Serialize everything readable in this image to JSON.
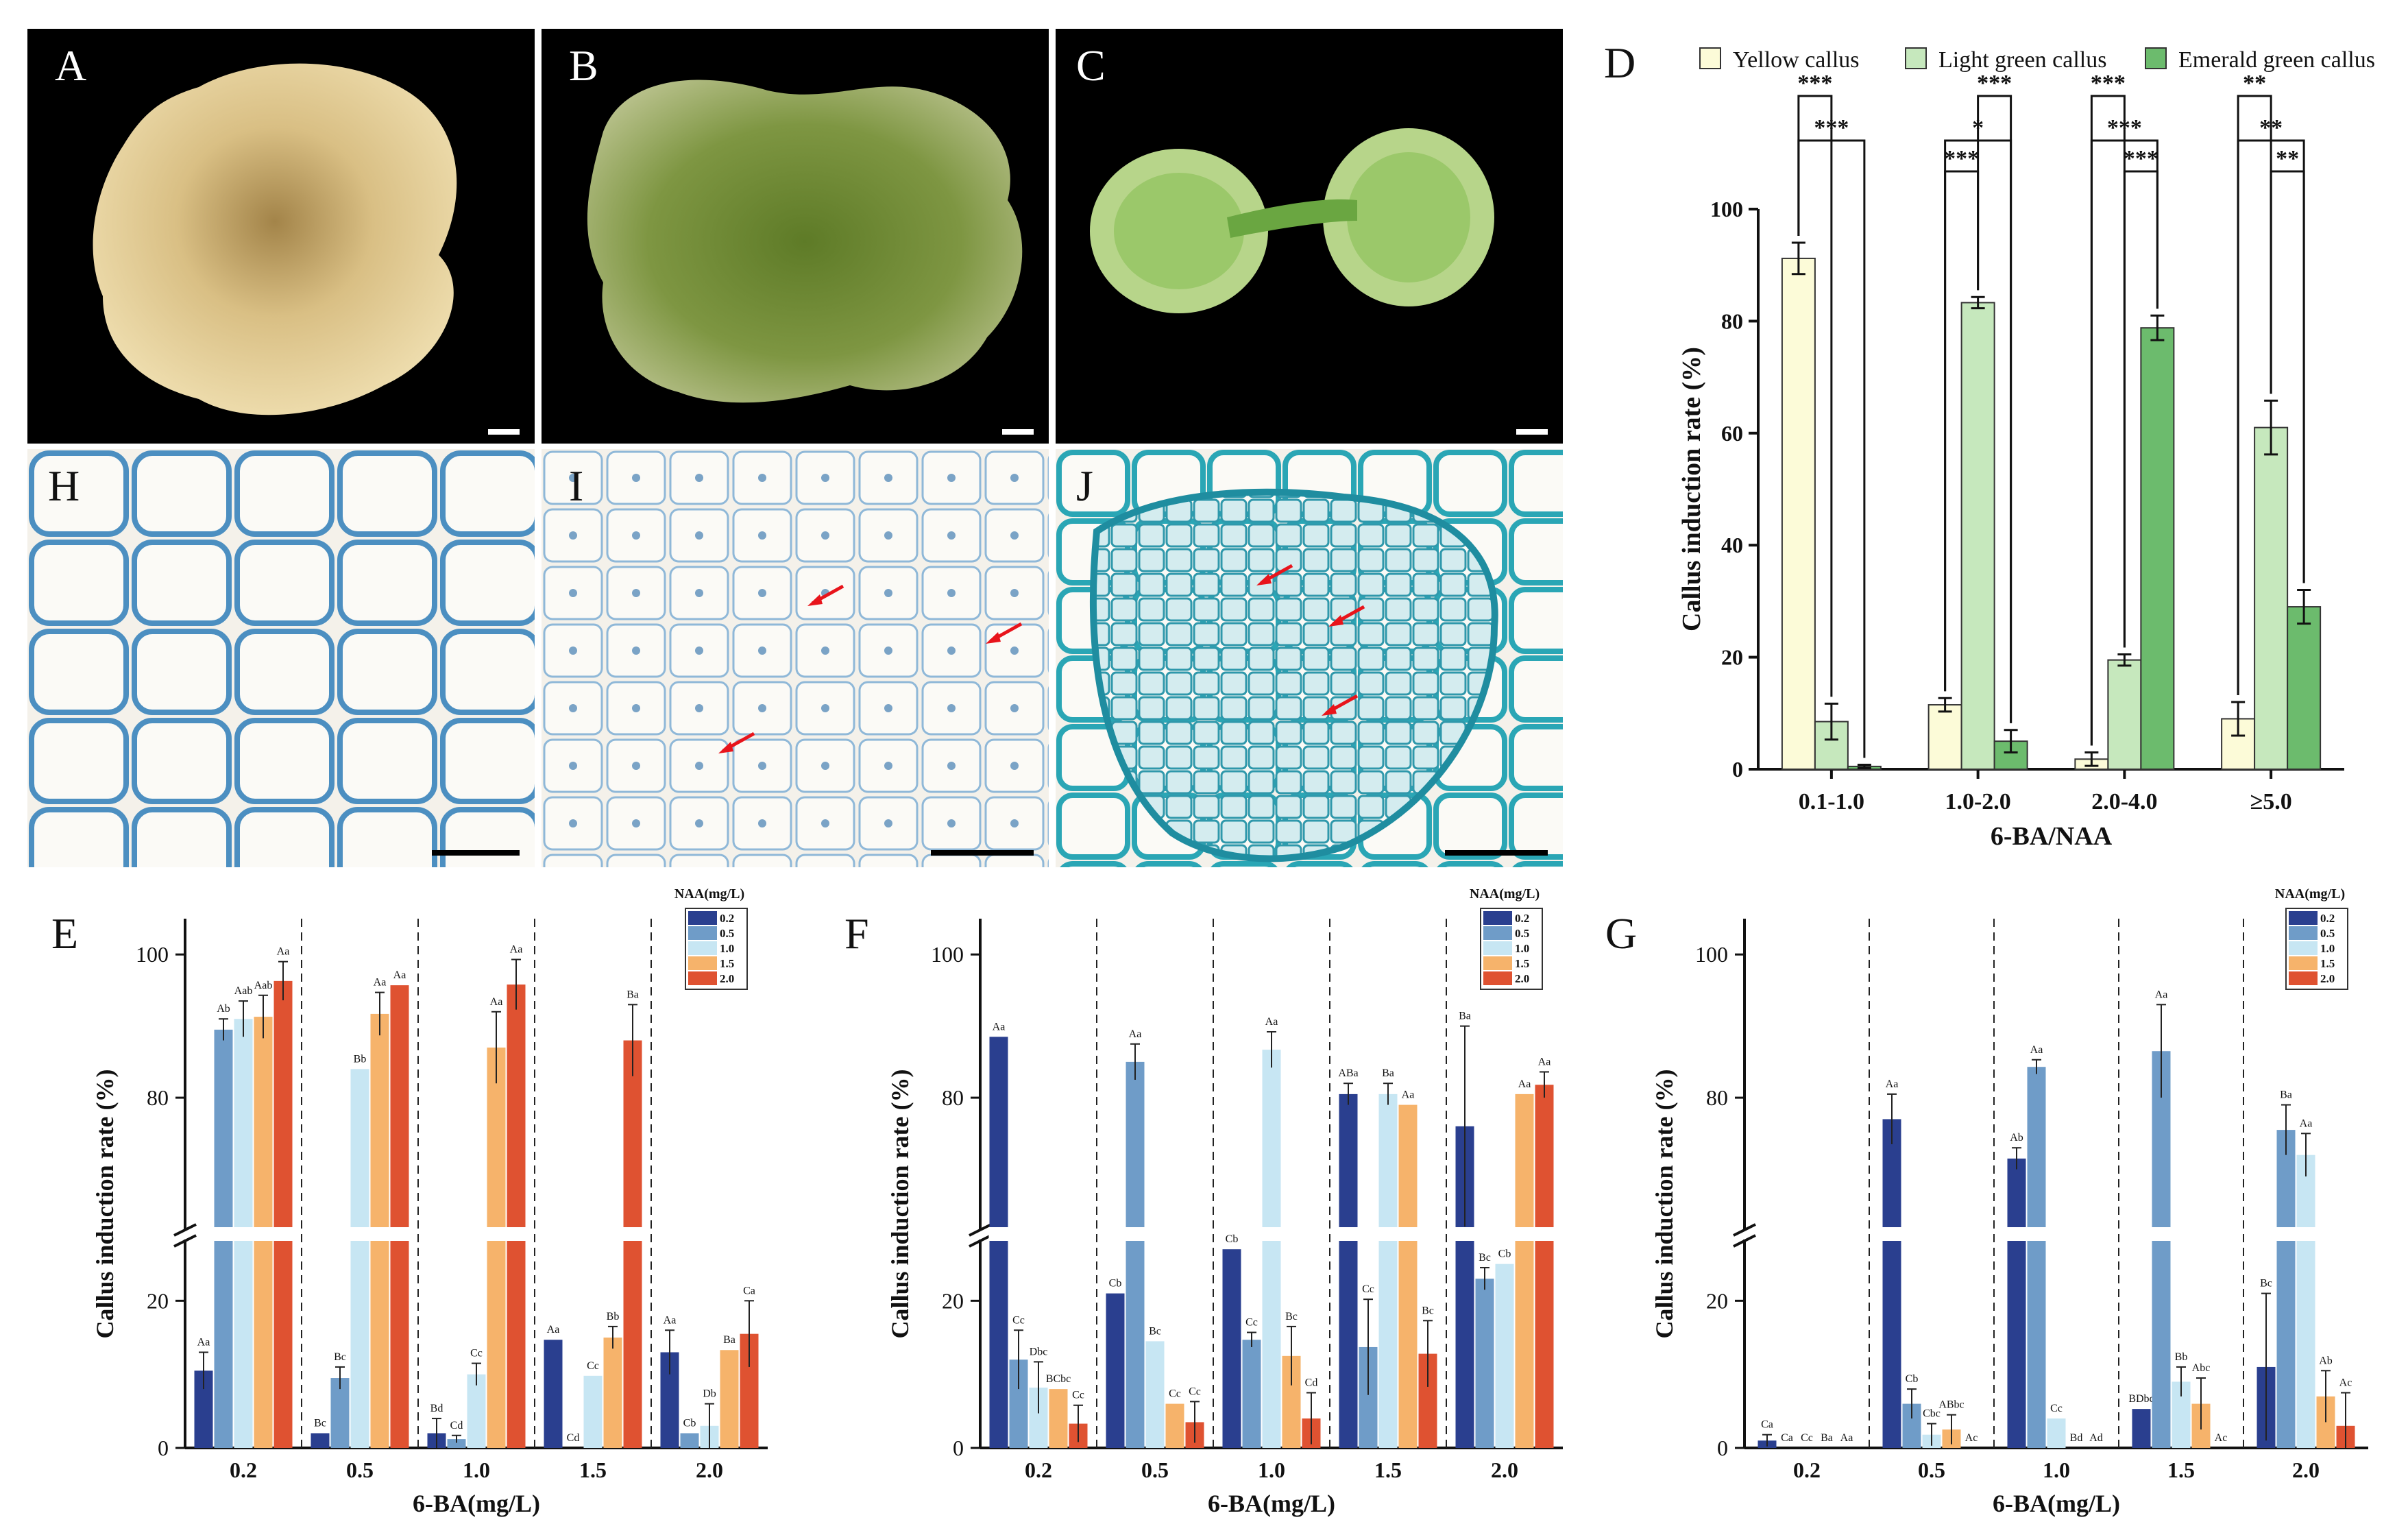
{
  "panels": {
    "A": "A",
    "B": "B",
    "C": "C",
    "D": "D",
    "E": "E",
    "F": "F",
    "G": "G",
    "H": "H",
    "I": "I",
    "J": "J"
  },
  "colors": {
    "photo_bg": "#000000",
    "histo_bg": "#f4f1ea",
    "arrow": "#e8141b",
    "D_yellow": "#fcfbd8",
    "D_light": "#c6e8bd",
    "D_emerald": "#6cbb6d",
    "NAA_0.2": "#2a3f8f",
    "NAA_0.5": "#6f9cc8",
    "NAA_1.0": "#c7e6f3",
    "NAA_1.5": "#f6b36b",
    "NAA_2.0": "#df5231"
  },
  "chart_data": [
    {
      "panel": "D",
      "type": "bar",
      "categories": [
        "0.1-1.0",
        "1.0-2.0",
        "2.0-4.0",
        "≥5.0"
      ],
      "xlabel": "6-BA/NAA",
      "ylabel": "Callus induction rate (%)",
      "ylim": [
        0,
        100
      ],
      "yticks": [
        "0",
        "20",
        "40",
        "60",
        "80",
        "100"
      ],
      "legend_position": "top",
      "series": [
        {
          "name": "Yellow callus",
          "values": [
            91.2,
            11.5,
            1.8,
            9.0
          ],
          "errors": [
            2.8,
            1.2,
            1.2,
            3.0
          ]
        },
        {
          "name": "Light green callus",
          "values": [
            8.5,
            83.3,
            19.5,
            61.0
          ],
          "errors": [
            3.2,
            1.0,
            1.0,
            4.8
          ]
        },
        {
          "name": "Emerald green callus",
          "values": [
            0.5,
            5.0,
            78.8,
            29.0
          ],
          "errors": [
            0.3,
            2.0,
            2.2,
            3.0
          ]
        }
      ],
      "significance": [
        {
          "group": "0.1-1.0",
          "pairs": [
            [
              "Yellow callus",
              "Emerald green callus",
              "***"
            ],
            [
              "Yellow callus",
              "Light green callus",
              "***"
            ]
          ]
        },
        {
          "group": "1.0-2.0",
          "pairs": [
            [
              "Yellow callus",
              "Emerald green callus",
              "*"
            ],
            [
              "Light green callus",
              "Emerald green callus",
              "***"
            ],
            [
              "Yellow callus",
              "Light green callus",
              "***"
            ]
          ]
        },
        {
          "group": "2.0-4.0",
          "pairs": [
            [
              "Yellow callus",
              "Emerald green callus",
              "***"
            ],
            [
              "Yellow callus",
              "Light green callus",
              "***"
            ],
            [
              "Light green callus",
              "Emerald green callus",
              "***"
            ]
          ]
        },
        {
          "group": "≥5.0",
          "pairs": [
            [
              "Yellow callus",
              "Emerald green callus",
              "**"
            ],
            [
              "Yellow callus",
              "Light green callus",
              "**"
            ],
            [
              "Light green callus",
              "Emerald green callus",
              "**"
            ]
          ]
        }
      ]
    },
    {
      "panel": "E",
      "type": "bar",
      "categories": [
        "0.2",
        "0.5",
        "1.0",
        "1.5",
        "2.0"
      ],
      "xlabel": "6-BA(mg/L)",
      "ylabel": "Callus induction rate (%)",
      "legend_title": "NAA(mg/L)",
      "axis_break": [
        30,
        60
      ],
      "ylim": [
        0,
        105
      ],
      "yticks": [
        "0",
        "20",
        "80",
        "100"
      ],
      "series": [
        {
          "name": "0.2",
          "values": [
            10.5,
            2.0,
            2.0,
            14.7,
            13.0
          ],
          "errors": [
            2.5,
            0,
            2.0,
            0,
            3.0
          ],
          "labels": [
            "Aa",
            "Bc",
            "Bd",
            "Aa",
            "Aa"
          ]
        },
        {
          "name": "0.5",
          "values": [
            89.5,
            9.5,
            1.2,
            0.0,
            2.0
          ],
          "errors": [
            1.5,
            1.5,
            0.5,
            0,
            0
          ],
          "labels": [
            "Ab",
            "Bc",
            "Cd",
            "Cd",
            "Cb"
          ]
        },
        {
          "name": "1.0",
          "values": [
            91.0,
            84.0,
            10.0,
            9.8,
            3.0
          ],
          "errors": [
            2.5,
            0,
            1.5,
            0,
            3.0
          ],
          "labels": [
            "Aab",
            "Bb",
            "Cc",
            "Cc",
            "Db"
          ]
        },
        {
          "name": "1.5",
          "values": [
            91.3,
            91.7,
            87.0,
            15.0,
            13.3
          ],
          "errors": [
            3.0,
            3.0,
            5.0,
            1.5,
            0
          ],
          "labels": [
            "Aab",
            "Aa",
            "Aa",
            "Bb",
            "Ba"
          ]
        },
        {
          "name": "2.0",
          "values": [
            96.3,
            95.7,
            95.8,
            88.0,
            15.5
          ],
          "errors": [
            2.7,
            0,
            3.5,
            5.0,
            4.5
          ],
          "labels": [
            "Aa",
            "Aa",
            "Aa",
            "Ba",
            "Ca"
          ]
        }
      ]
    },
    {
      "panel": "F",
      "type": "bar",
      "categories": [
        "0.2",
        "0.5",
        "1.0",
        "1.5",
        "2.0"
      ],
      "xlabel": "6-BA(mg/L)",
      "ylabel": "Callus induction rate (%)",
      "legend_title": "NAA(mg/L)",
      "axis_break": [
        30,
        60
      ],
      "ylim": [
        0,
        105
      ],
      "yticks": [
        "0",
        "20",
        "80",
        "100"
      ],
      "series": [
        {
          "name": "0.2",
          "values": [
            88.5,
            21.0,
            27.0,
            80.5,
            76.0
          ],
          "errors": [
            0,
            0,
            0,
            1.5,
            14.0
          ],
          "labels": [
            "Aa",
            "Cb",
            "Cb",
            "ABa",
            "Ba"
          ]
        },
        {
          "name": "0.5",
          "values": [
            12.0,
            85.0,
            14.7,
            13.7,
            23.0
          ],
          "errors": [
            4.0,
            2.5,
            1.0,
            6.5,
            1.5
          ],
          "labels": [
            "Cc",
            "Aa",
            "Cc",
            "Cc",
            "Bc"
          ]
        },
        {
          "name": "1.0",
          "values": [
            8.2,
            14.5,
            86.7,
            80.5,
            25.0
          ],
          "errors": [
            3.5,
            0,
            2.5,
            1.5,
            0
          ],
          "labels": [
            "Dbc",
            "Bc",
            "Aa",
            "Ba",
            "Cb"
          ]
        },
        {
          "name": "1.5",
          "values": [
            8.0,
            6.0,
            12.5,
            79.0,
            80.5
          ],
          "errors": [
            0,
            0,
            4.0,
            0,
            0
          ],
          "labels": [
            "BCbc",
            "Cc",
            "Bc",
            "Aa",
            "Aa"
          ]
        },
        {
          "name": "2.0",
          "values": [
            3.3,
            3.5,
            4.0,
            12.8,
            81.8
          ],
          "errors": [
            2.5,
            2.8,
            3.5,
            4.5,
            1.8
          ],
          "labels": [
            "Cc",
            "Cc",
            "Cd",
            "Bc",
            "Aa"
          ]
        }
      ]
    },
    {
      "panel": "G",
      "type": "bar",
      "categories": [
        "0.2",
        "0.5",
        "1.0",
        "1.5",
        "2.0"
      ],
      "xlabel": "6-BA(mg/L)",
      "ylabel": "Callus induction rate (%)",
      "legend_title": "NAA(mg/L)",
      "axis_break": [
        30,
        60
      ],
      "ylim": [
        0,
        105
      ],
      "yticks": [
        "0",
        "20",
        "80",
        "100"
      ],
      "series": [
        {
          "name": "0.2",
          "values": [
            1.0,
            77.0,
            71.5,
            5.3,
            11.0
          ],
          "errors": [
            0.8,
            3.5,
            1.5,
            0,
            10.0
          ],
          "labels": [
            "Ca",
            "Aa",
            "Ab",
            "BDbc",
            "Bc"
          ]
        },
        {
          "name": "0.5",
          "values": [
            0,
            6.0,
            84.3,
            86.5,
            75.5
          ],
          "errors": [
            0,
            2.0,
            1.0,
            6.5,
            3.5
          ],
          "labels": [
            "Ca",
            "Cb",
            "Aa",
            "Aa",
            "Ba"
          ]
        },
        {
          "name": "1.0",
          "values": [
            0,
            1.8,
            4.0,
            9.0,
            72.0
          ],
          "errors": [
            0,
            1.5,
            0,
            2.0,
            3.0
          ],
          "labels": [
            "Cc",
            "Cbc",
            "Cc",
            "Bb",
            "Aa"
          ]
        },
        {
          "name": "1.5",
          "values": [
            0,
            2.5,
            0,
            6.0,
            7.0
          ],
          "errors": [
            0,
            2.0,
            0,
            3.5,
            3.5
          ],
          "labels": [
            "Ba",
            "ABbc",
            "Bd",
            "Abc",
            "Ab"
          ]
        },
        {
          "name": "2.0",
          "values": [
            0,
            0,
            0,
            0,
            3.0
          ],
          "errors": [
            0,
            0,
            0,
            0,
            4.5
          ],
          "labels": [
            "Aa",
            "Ac",
            "Ad",
            "Ac",
            "Ac"
          ]
        }
      ]
    }
  ]
}
